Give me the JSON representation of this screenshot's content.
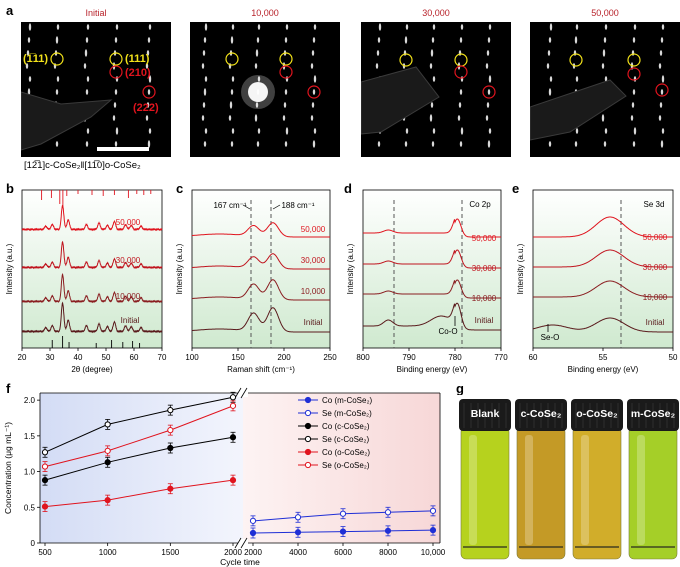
{
  "panel_labels": {
    "a": "a",
    "b": "b",
    "c": "c",
    "d": "d",
    "e": "e",
    "f": "f",
    "g": "g"
  },
  "panel_a": {
    "titles": [
      "Initial",
      "10,000",
      "30,000",
      "50,000"
    ],
    "annotations": {
      "c111": "(1̅11)",
      "o111": "(111)",
      "o210": "(210)",
      "o222": "(222)"
    },
    "caption": "[12̅1]c-CoSe₂‖[11̅0]o-CoSe₂"
  },
  "spectra": {
    "levels": [
      "50,000",
      "30,000",
      "10,000",
      "Initial"
    ],
    "ylabel": "Intensity (a.u.)",
    "b": {
      "xlabel": "2θ (degree)",
      "ticks": [
        "20",
        "30",
        "40",
        "50",
        "60",
        "70"
      ],
      "range": [
        20,
        70
      ]
    },
    "c": {
      "xlabel": "Raman shift (cm⁻¹)",
      "ticks": [
        "100",
        "150",
        "200",
        "250"
      ],
      "range": [
        100,
        250
      ],
      "ann1": "167 cm⁻¹",
      "ann2": "188 cm⁻¹"
    },
    "d": {
      "xlabel": "Binding energy (eV)",
      "ticks": [
        "800",
        "790",
        "780",
        "770"
      ],
      "range": [
        800,
        770
      ],
      "tag": "Co 2p",
      "coo": "Co-O"
    },
    "e": {
      "xlabel": "Binding energy (eV)",
      "ticks": [
        "60",
        "55",
        "50"
      ],
      "range": [
        60,
        50
      ],
      "tag": "Se 3d",
      "seo": "Se-O"
    }
  },
  "chart_data": {
    "type": "line",
    "xlabel": "Cycle time",
    "ylabel": "Concentration (μg mL⁻¹)",
    "ylim": [
      0,
      2.1
    ],
    "x_left": [
      500,
      1000,
      1500,
      2000
    ],
    "x_right": [
      2000,
      4000,
      6000,
      8000,
      10000
    ],
    "xticks_left": [
      "500",
      "1000",
      "1500",
      "2000"
    ],
    "xticks_right": [
      "2000",
      "4000",
      "6000",
      "8000",
      "10,000"
    ],
    "yticks": [
      "0",
      "0.5",
      "1.0",
      "1.5",
      "2.0"
    ],
    "series": [
      {
        "name": "Co (m-CoSe₂)",
        "color": "#1f2fd6",
        "fill": true,
        "x": [
          2000,
          4000,
          6000,
          8000,
          10000
        ],
        "values": [
          0.14,
          0.15,
          0.16,
          0.17,
          0.18
        ]
      },
      {
        "name": "Se (m-CoSe₂)",
        "color": "#1f2fd6",
        "fill": false,
        "x": [
          2000,
          4000,
          6000,
          8000,
          10000
        ],
        "values": [
          0.31,
          0.36,
          0.41,
          0.43,
          0.45
        ]
      },
      {
        "name": "Co (c-CoSe₂)",
        "color": "#000000",
        "fill": true,
        "x": [
          500,
          1000,
          1500,
          2000
        ],
        "values": [
          0.88,
          1.13,
          1.33,
          1.48
        ]
      },
      {
        "name": "Se (c-CoSe₂)",
        "color": "#000000",
        "fill": false,
        "x": [
          500,
          1000,
          1500,
          2000
        ],
        "values": [
          1.27,
          1.66,
          1.86,
          2.04
        ]
      },
      {
        "name": "Co (o-CoSe₂)",
        "color": "#e0141e",
        "fill": true,
        "x": [
          500,
          1000,
          1500,
          2000
        ],
        "values": [
          0.51,
          0.6,
          0.76,
          0.88
        ]
      },
      {
        "name": "Se (o-CoSe₂)",
        "color": "#e0141e",
        "fill": false,
        "x": [
          500,
          1000,
          1500,
          2000
        ],
        "values": [
          1.07,
          1.29,
          1.58,
          1.92
        ]
      }
    ]
  },
  "vials": {
    "labels": [
      "Blank",
      "c-CoSe₂",
      "o-CoSe₂",
      "m-CoSe₂"
    ],
    "colors": [
      "#b6d21e",
      "#c49a26",
      "#d1ad2a",
      "#a5cf28"
    ]
  }
}
